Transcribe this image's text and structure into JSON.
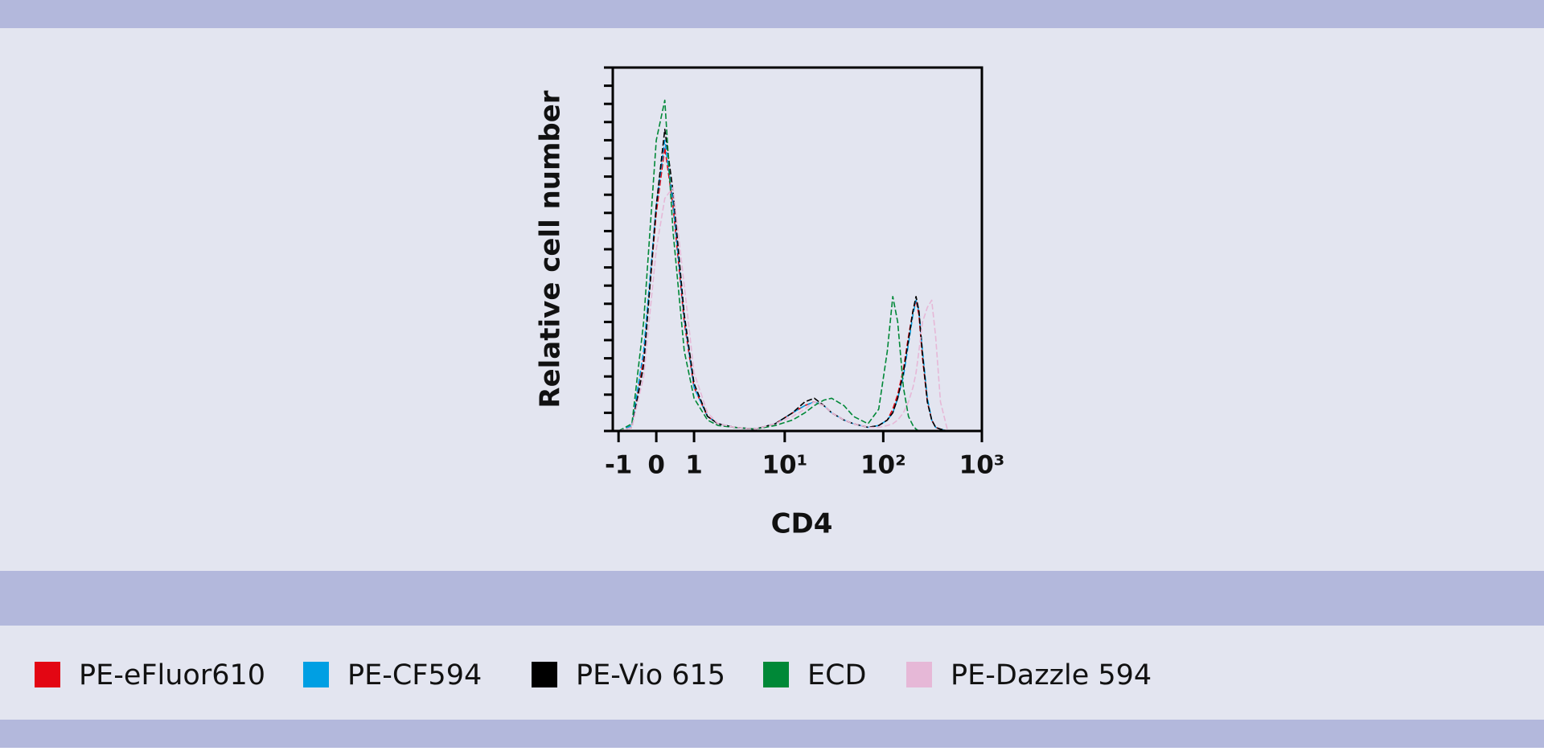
{
  "chart_data": {
    "type": "line",
    "x_label": "CD4",
    "y_label": "Relative cell number",
    "xscale": "asinh",
    "xlim": [
      -1.2,
      1000
    ],
    "xticks": [
      -1,
      0,
      1,
      {
        "value": 10,
        "label": "10¹"
      },
      {
        "value": 100,
        "label": "10²"
      },
      {
        "value": 1000,
        "label": "10³"
      }
    ],
    "ylim": [
      0,
      100
    ],
    "yticks": [
      0,
      5,
      10,
      15,
      20,
      25,
      30,
      35,
      40,
      45,
      50,
      55,
      60,
      65,
      70,
      75,
      80,
      85,
      90,
      95,
      100
    ],
    "dashed": true,
    "x": [
      -1,
      -0.6,
      -0.3,
      0,
      0.2,
      0.4,
      0.7,
      1,
      1.5,
      2,
      3,
      5,
      8,
      12,
      16,
      20,
      25,
      30,
      40,
      50,
      70,
      90,
      110,
      125,
      140,
      160,
      180,
      200,
      215,
      230,
      250,
      280,
      310,
      340,
      380,
      450
    ],
    "series": [
      {
        "name": "PE-eFluor610",
        "color": "#e30613",
        "values": [
          0,
          1,
          20,
          60,
          78,
          62,
          30,
          12,
          4,
          2,
          1,
          0.5,
          2,
          5,
          7,
          8,
          7,
          5,
          3,
          2,
          1,
          1.5,
          3,
          6,
          10,
          17,
          26,
          33,
          36,
          32,
          20,
          8,
          3,
          1,
          0.5,
          0
        ]
      },
      {
        "name": "PE-CF594",
        "color": "#009fe3",
        "values": [
          0,
          1.5,
          22,
          62,
          80,
          63,
          31,
          12,
          4,
          2,
          1,
          0.5,
          2,
          5,
          7,
          8,
          7,
          5,
          3,
          2,
          1,
          1.5,
          3,
          5,
          9,
          15,
          24,
          32,
          36,
          33,
          22,
          9,
          3,
          1,
          0.5,
          0
        ]
      },
      {
        "name": "PE-Vio 615",
        "color": "#000000",
        "values": [
          0,
          1,
          18,
          62,
          83,
          66,
          32,
          13,
          4,
          2,
          1,
          0.5,
          2,
          5,
          8,
          9,
          7,
          5,
          3,
          2,
          1,
          1.5,
          3,
          5,
          9,
          16,
          25,
          33,
          37,
          33,
          21,
          8,
          3,
          1,
          0.5,
          0
        ]
      },
      {
        "name": "ECD",
        "color": "#008837",
        "values": [
          0,
          2,
          30,
          80,
          91,
          55,
          22,
          9,
          3,
          1.5,
          1,
          0.5,
          1.5,
          3,
          5,
          7,
          8.5,
          9,
          7,
          4,
          2,
          6,
          22,
          37,
          30,
          12,
          4,
          1.5,
          0.5,
          0,
          0,
          0,
          0,
          0,
          0,
          0
        ]
      },
      {
        "name": "PE-Dazzle 594",
        "color": "#e6b8d7",
        "values": [
          0,
          1,
          15,
          50,
          64,
          67,
          40,
          16,
          5,
          2,
          1,
          0.5,
          2,
          4,
          6,
          8,
          7,
          5,
          3,
          2,
          1,
          1,
          1.5,
          2,
          3,
          5,
          8,
          12,
          16,
          22,
          30,
          34,
          36,
          26,
          8,
          0
        ]
      }
    ]
  }
}
